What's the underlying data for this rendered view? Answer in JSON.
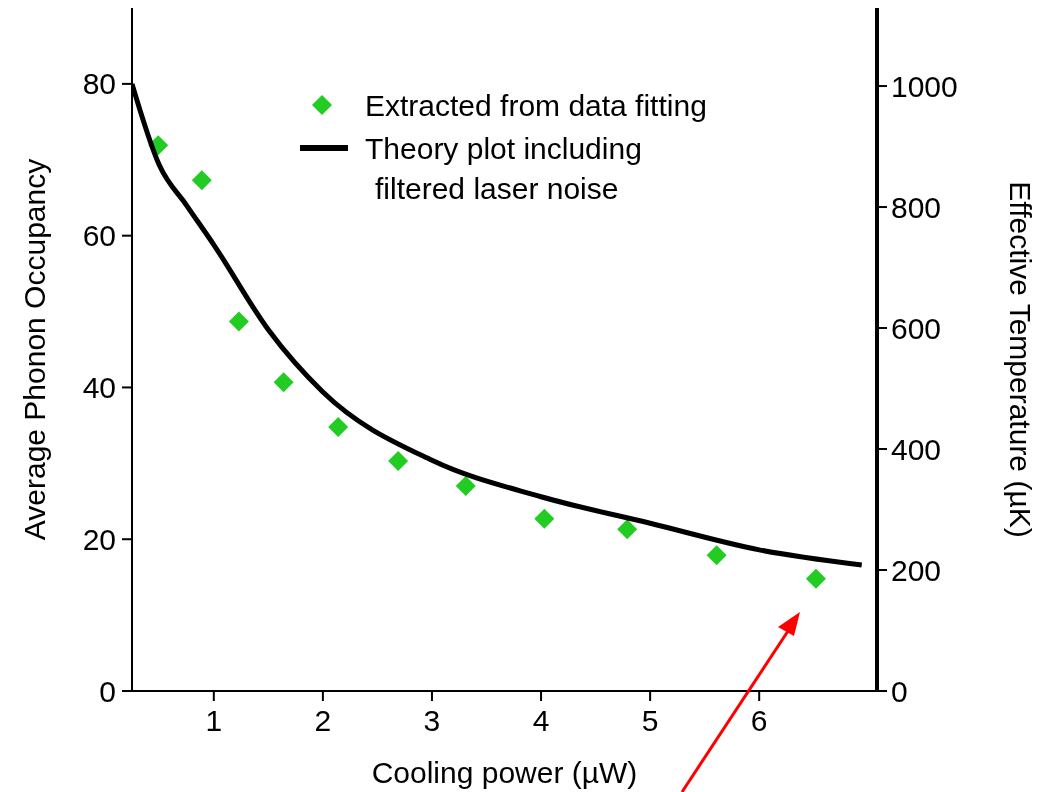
{
  "chart_data": {
    "type": "scatter",
    "xlabel": "Cooling power (µW)",
    "ylabel": "Average Phonon Occupancy",
    "y2label": "Effective Temperature (µK)",
    "xlim": [
      0.25,
      7.08
    ],
    "xticks": [
      1,
      2,
      3,
      4,
      5,
      6
    ],
    "ylim": [
      0,
      90
    ],
    "yticks": [
      0,
      20,
      40,
      60,
      80
    ],
    "y2lim": [
      0,
      1129
    ],
    "y2ticks": [
      0,
      200,
      400,
      600,
      800,
      1000
    ],
    "legend": "top right",
    "grid": false,
    "series": [
      {
        "name": "Extracted from data fitting",
        "marker": "diamond",
        "color": "#22cc22",
        "x": [
          0.49,
          0.89,
          1.23,
          1.64,
          2.14,
          2.69,
          3.31,
          4.03,
          4.79,
          5.61,
          6.52
        ],
        "values": [
          71.9,
          67.3,
          48.7,
          40.7,
          34.8,
          30.3,
          27.0,
          22.7,
          21.3,
          17.9,
          14.8
        ]
      },
      {
        "name": "Theory plot including\nfiltered laser noise",
        "type": "line",
        "line_style": "solid",
        "color": "#000000",
        "x": [
          0.25,
          0.5,
          0.75,
          1,
          1.5,
          2,
          3,
          4,
          5,
          6,
          6.94
        ],
        "values": [
          80,
          69.3,
          64,
          58.8,
          47.6,
          39.4,
          30.4,
          25.6,
          22.1,
          18.6,
          16.6
        ]
      }
    ]
  }
}
